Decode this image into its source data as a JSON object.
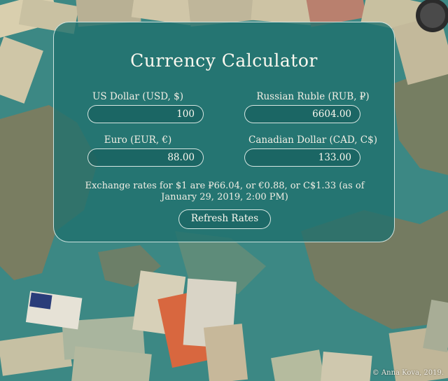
{
  "app": {
    "title": "Currency Calculator"
  },
  "currencies": {
    "usd": {
      "label": "US Dollar (USD, $)",
      "value": "100"
    },
    "rub": {
      "label": "Russian Ruble (RUB, ₽)",
      "value": "6604.00"
    },
    "eur": {
      "label": "Euro (EUR, €)",
      "value": "88.00"
    },
    "cad": {
      "label": "Canadian Dollar (CAD, C$)",
      "value": "133.00"
    }
  },
  "rates_note": {
    "line1": "Exchange rates for $1 are ₽66.04, or €0.88, or C$1.33 (as of",
    "line2": "January 29, 2019, 2:00 PM)"
  },
  "refresh_label": "Refresh Rates",
  "credit": "© Anna Kova, 2019.",
  "colors": {
    "card_bg": "#1f706e",
    "border": "#ebf5f0",
    "text": "#f4f1e8",
    "map_sea": "#3f8a86",
    "map_land": "#8a7350"
  }
}
